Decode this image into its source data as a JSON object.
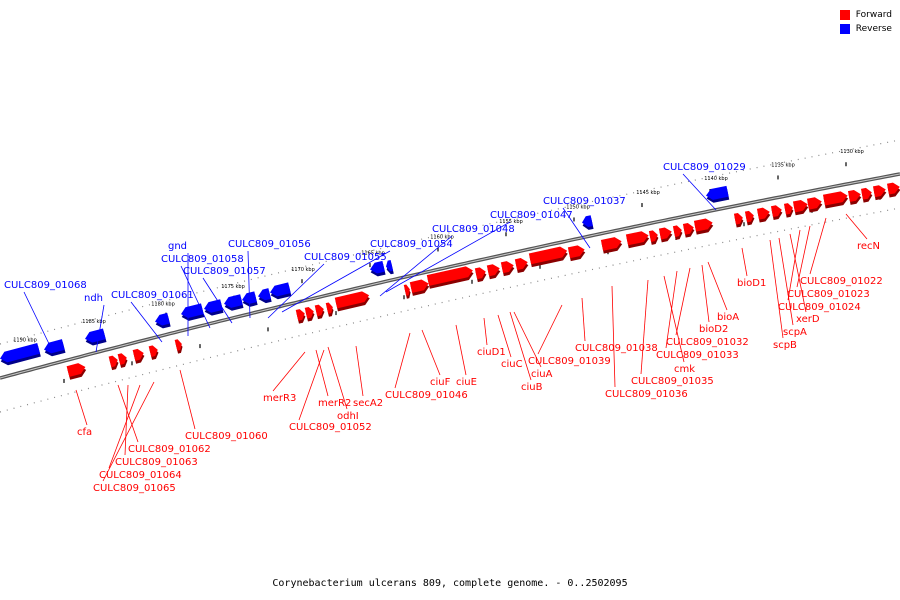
{
  "legend": {
    "forward_label": "Forward",
    "reverse_label": "Reverse",
    "forward_color": "#ff0000",
    "reverse_color": "#0000ff"
  },
  "caption": "Corynebacterium ulcerans 809, complete genome. - 0..2502095",
  "kbp_ticks": [
    "1190 kbp",
    "1185 kbp",
    "1180 kbp",
    "1175 kbp",
    "1170 kbp",
    "1165 kbp",
    "1160 kbp",
    "1155 kbp",
    "1150 kbp",
    "1145 kbp",
    "1140 kbp",
    "1135 kbp",
    "1130 kbp"
  ],
  "reverse_genes": [
    "CULC809_01068",
    "ndh",
    "CULC809_01061",
    "gnd",
    "CULC809_01058",
    "CULC809_01057",
    "CULC809_01056",
    "CULC809_01055",
    "CULC809_01054",
    "CULC809_01048",
    "CULC809_01047",
    "CULC809_01037",
    "CULC809_01029"
  ],
  "forward_genes": [
    "cfa",
    "CULC809_01060",
    "CULC809_01062",
    "CULC809_01063",
    "CULC809_01064",
    "CULC809_01065",
    "merR3",
    "merR2",
    "odhI",
    "secA2",
    "CULC809_01052",
    "CULC809_01046",
    "ciuF",
    "ciuE",
    "ciuD1",
    "ciuC",
    "ciuA",
    "ciuB",
    "CULC809_01039",
    "CULC809_01038",
    "CULC809_01036",
    "CULC809_01035",
    "cmk",
    "CULC809_01033",
    "CULC809_01032",
    "bioD2",
    "bioA",
    "bioD1",
    "scpB",
    "scpA",
    "xerD",
    "CULC809_01024",
    "CULC809_01023",
    "CULC809_01022",
    "recN"
  ]
}
